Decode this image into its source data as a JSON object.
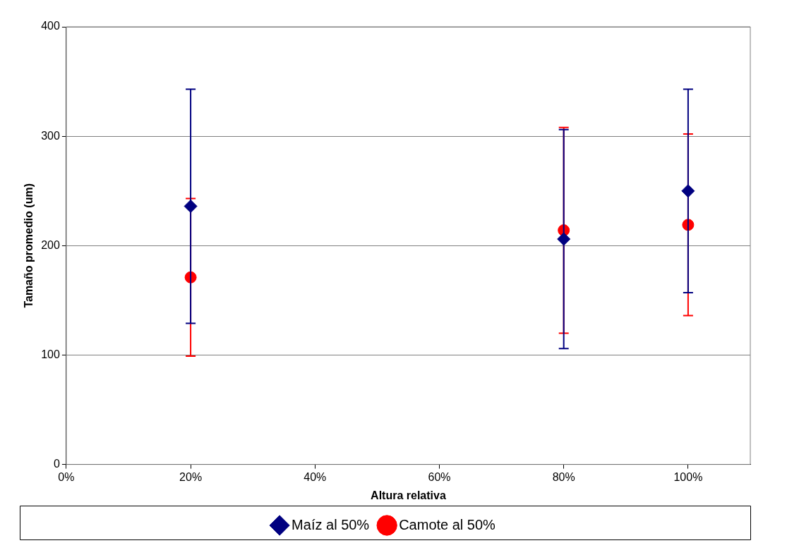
{
  "chart_data": {
    "type": "scatter",
    "xlabel": "Altura relativa",
    "ylabel": "Tamaño promedio (um)",
    "x": [
      20,
      80,
      100
    ],
    "series": [
      {
        "name": "Maíz al 50%",
        "color": "#000080",
        "marker": "diamond",
        "values": [
          236,
          206,
          250
        ],
        "errors": [
          107,
          100,
          93
        ]
      },
      {
        "name": "Camote al 50%",
        "color": "#ff0000",
        "marker": "circle",
        "values": [
          171,
          214,
          219
        ],
        "errors": [
          72,
          94,
          83
        ]
      }
    ],
    "xlim": [
      0,
      110
    ],
    "xticks": [
      {
        "value": 0,
        "label": "0%"
      },
      {
        "value": 20,
        "label": "20%"
      },
      {
        "value": 40,
        "label": "40%"
      },
      {
        "value": 60,
        "label": "60%"
      },
      {
        "value": 80,
        "label": "80%"
      },
      {
        "value": 100,
        "label": "100%"
      }
    ],
    "ylim": [
      0,
      400
    ],
    "yticks": [
      0,
      100,
      200,
      300,
      400
    ],
    "grid": "y",
    "legend": "bottom"
  }
}
